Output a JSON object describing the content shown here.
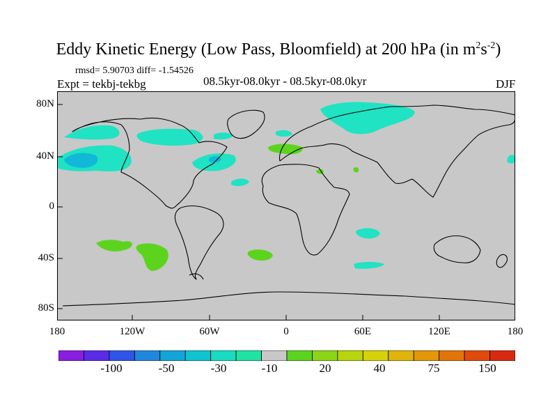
{
  "title": {
    "main": "Eddy Kinetic Energy (Low Pass, Bloomfield) at 200 hPa (in m",
    "sup1": "2",
    "mid": "s",
    "sup2": "-2",
    "close": ")"
  },
  "stats": "rmsd= 5.90703 diff= -1.54526",
  "experiment": "Expt = tekbj-tekbg",
  "period": "08.5kyr-08.0kyr - 08.5kyr-08.0kyr",
  "season": "DJF",
  "lat_labels": [
    "80N",
    "40N",
    "0",
    "40S",
    "80S"
  ],
  "lon_labels": [
    "180",
    "120W",
    "60W",
    "0",
    "60E",
    "120E",
    "180"
  ],
  "colorbar": {
    "colors": [
      "#8a1ee0",
      "#5a2ce8",
      "#2f55e6",
      "#1f88dc",
      "#12a6d8",
      "#0fc4d0",
      "#18dcc0",
      "#1fe3a5",
      "#c8c8c8",
      "#5cd41e",
      "#8cd416",
      "#b8d40e",
      "#d6d20a",
      "#e0b40a",
      "#e39608",
      "#e27408",
      "#e04a0a",
      "#d82a10"
    ],
    "labels": [
      "-100",
      "-50",
      "-30",
      "-10",
      "20",
      "40",
      "75",
      "150"
    ]
  },
  "colors": {
    "land_ocean": "#c8c8c8",
    "cyan_anomaly": "#1fe3c3",
    "blue_anomaly": "#12b8d8",
    "green_anomaly": "#5cd41e"
  }
}
